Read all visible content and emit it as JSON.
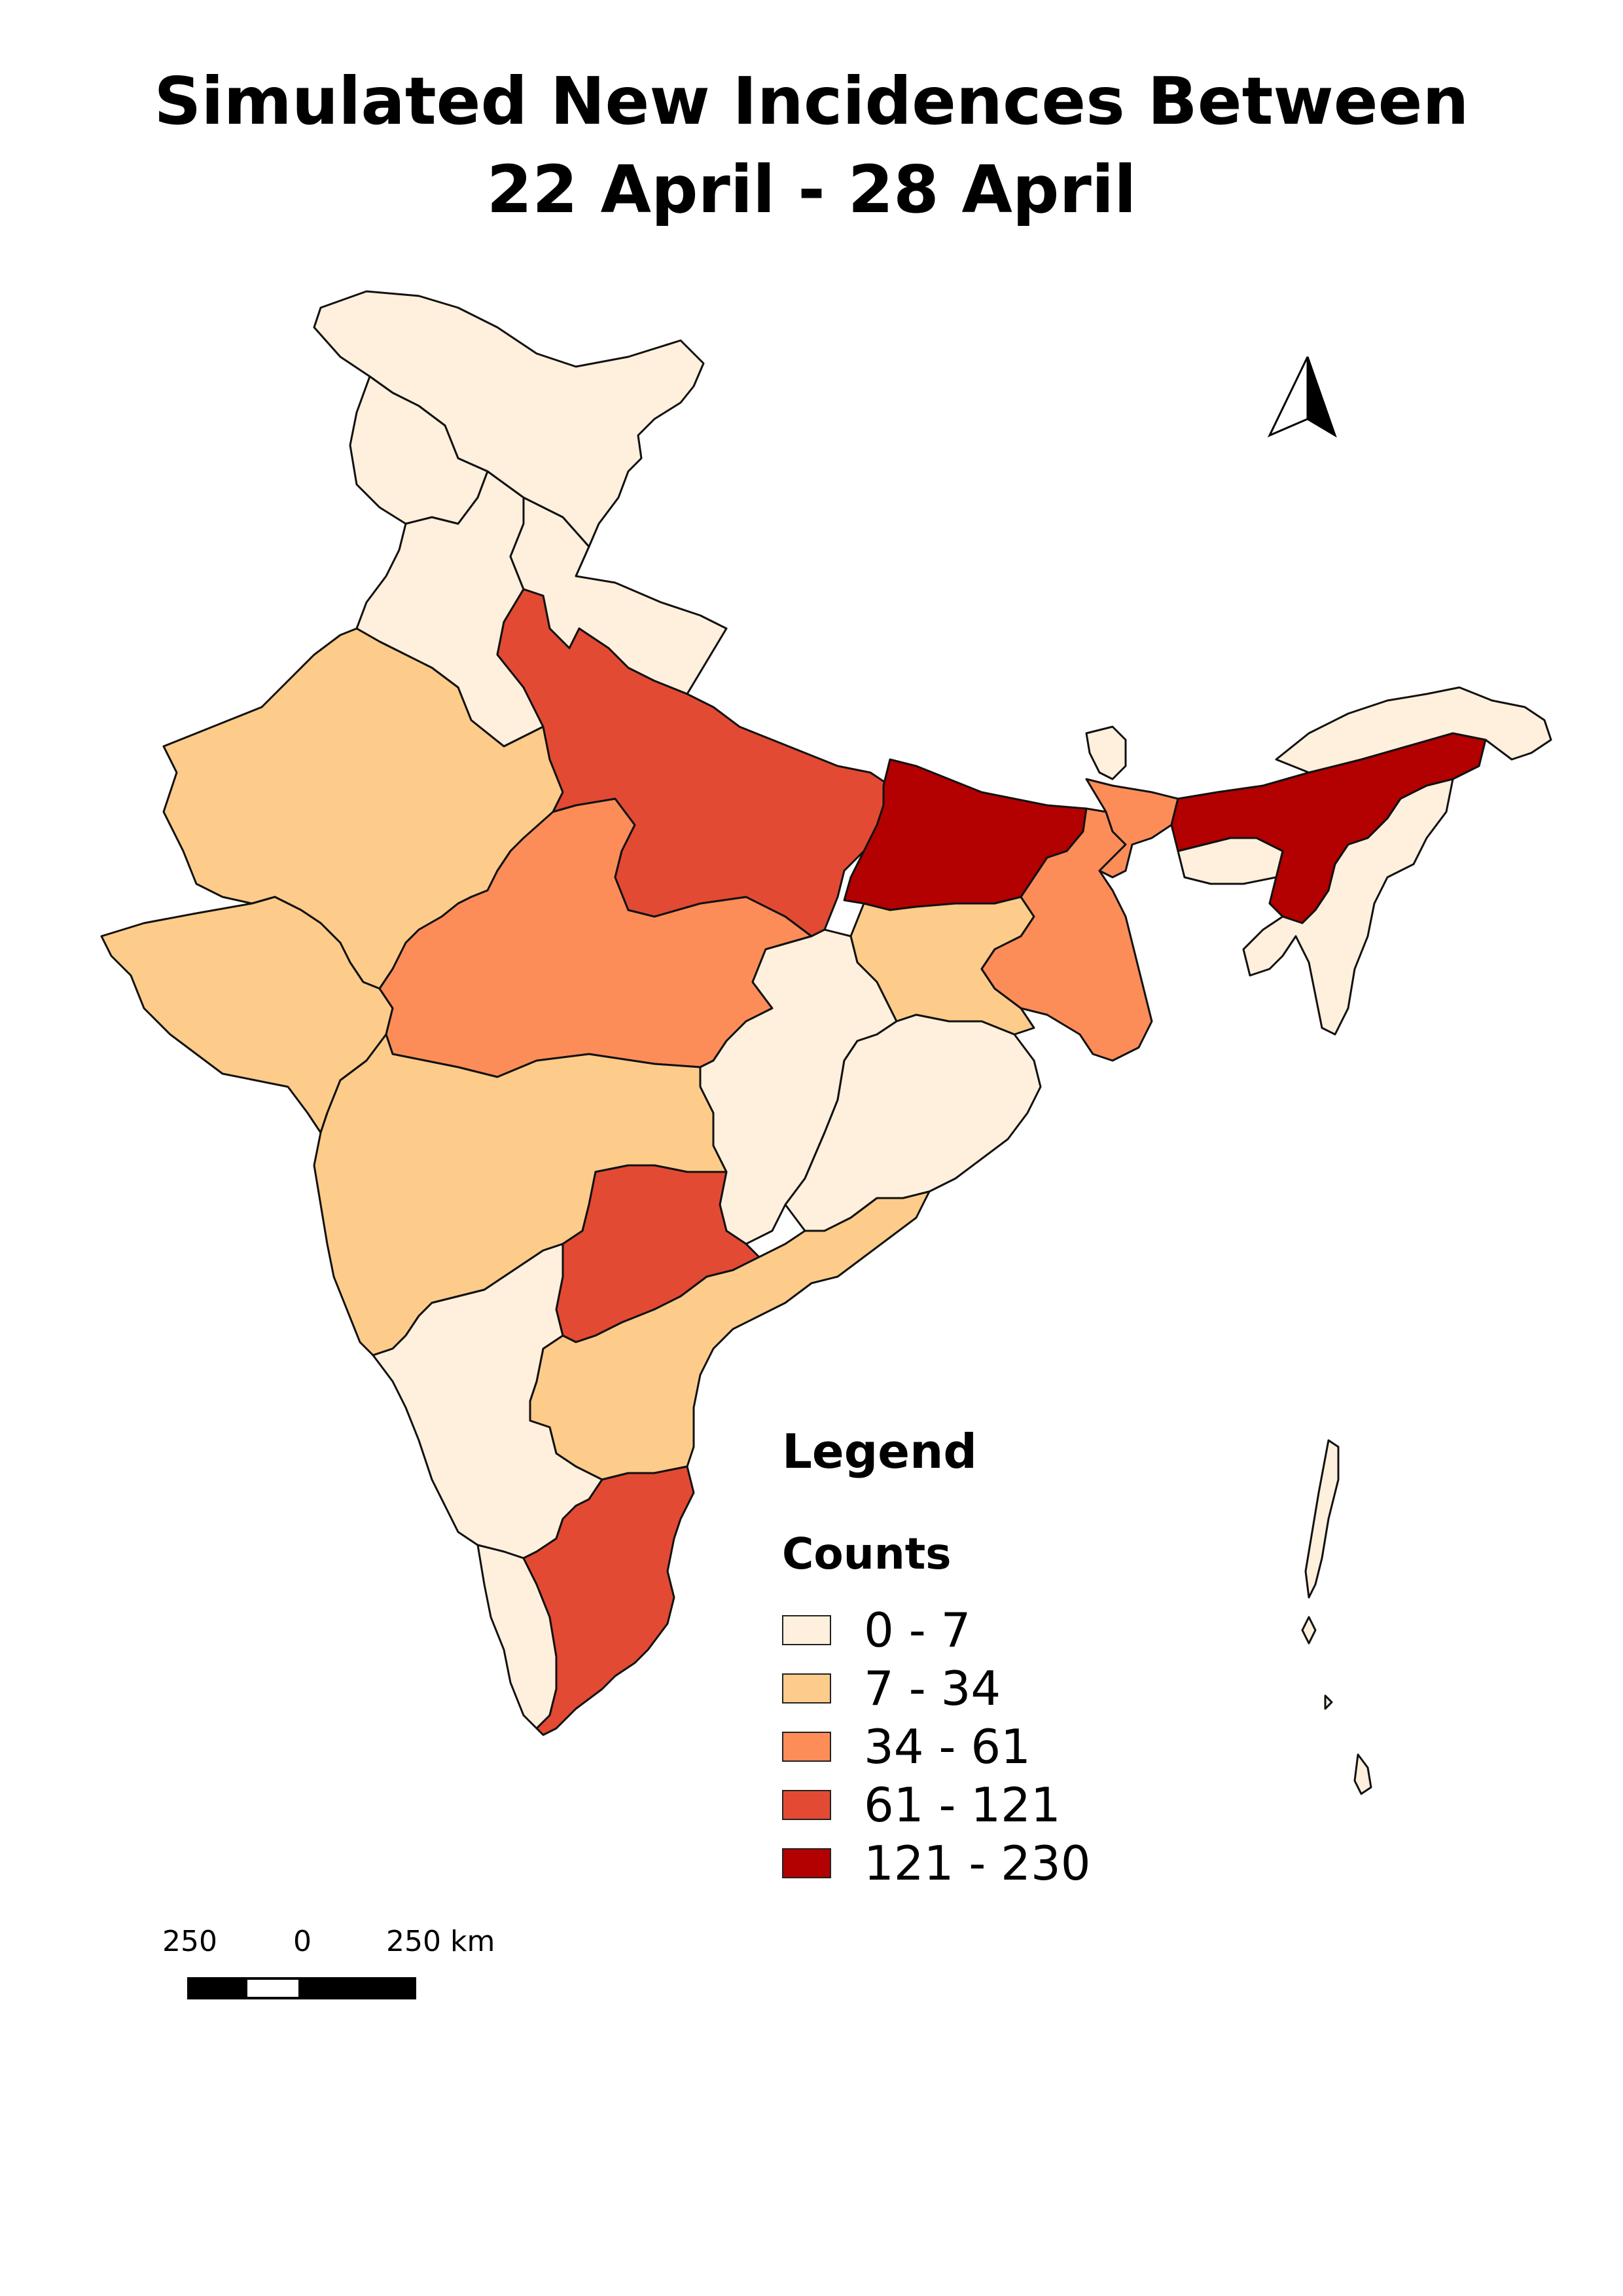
{
  "title": {
    "line1": "Simulated New Incidences Between",
    "line2": "22 April - 28 April"
  },
  "legend": {
    "heading": "Legend",
    "subheading": "Counts",
    "classes": [
      {
        "label": "0 - 7",
        "color": "#fef0dc"
      },
      {
        "label": "7 - 34",
        "color": "#fdcc8a"
      },
      {
        "label": "34 - 61",
        "color": "#fc8d59"
      },
      {
        "label": "61 - 121",
        "color": "#e34a33"
      },
      {
        "label": "121 - 230",
        "color": "#b30000"
      }
    ]
  },
  "scale_bar": {
    "left_label": "250",
    "center_label": "0",
    "right_label": "250 km"
  },
  "north_arrow": {
    "icon": "north-arrow-icon"
  },
  "regions": [
    {
      "name": "northern-frontier",
      "class": 0
    },
    {
      "name": "northwest-hills",
      "class": 0
    },
    {
      "name": "himalayan-foothills",
      "class": 0
    },
    {
      "name": "northern-plains",
      "class": 0
    },
    {
      "name": "west-desert",
      "class": 1
    },
    {
      "name": "west-coast-peninsula",
      "class": 1
    },
    {
      "name": "central-plateau",
      "class": 2
    },
    {
      "name": "gangetic-plain-west",
      "class": 3
    },
    {
      "name": "gangetic-plain-east",
      "class": 4
    },
    {
      "name": "eastern-plateau",
      "class": 1
    },
    {
      "name": "east-delta",
      "class": 2
    },
    {
      "name": "east-central-forest",
      "class": 0
    },
    {
      "name": "east-coast-north",
      "class": 0
    },
    {
      "name": "deccan-west",
      "class": 1
    },
    {
      "name": "deccan-east",
      "class": 3
    },
    {
      "name": "east-coast-south",
      "class": 1
    },
    {
      "name": "southwest-plateau",
      "class": 0
    },
    {
      "name": "southern-tip-west",
      "class": 0
    },
    {
      "name": "southern-tip-east",
      "class": 3
    },
    {
      "name": "himalayan-small-state",
      "class": 0
    },
    {
      "name": "corridor",
      "class": 2
    },
    {
      "name": "northeast-valley",
      "class": 4
    },
    {
      "name": "northeast-hills-north",
      "class": 0
    },
    {
      "name": "northeast-hills-south",
      "class": 0
    },
    {
      "name": "northeast-hills-mid",
      "class": 0
    },
    {
      "name": "island-chain",
      "class": 0
    }
  ]
}
